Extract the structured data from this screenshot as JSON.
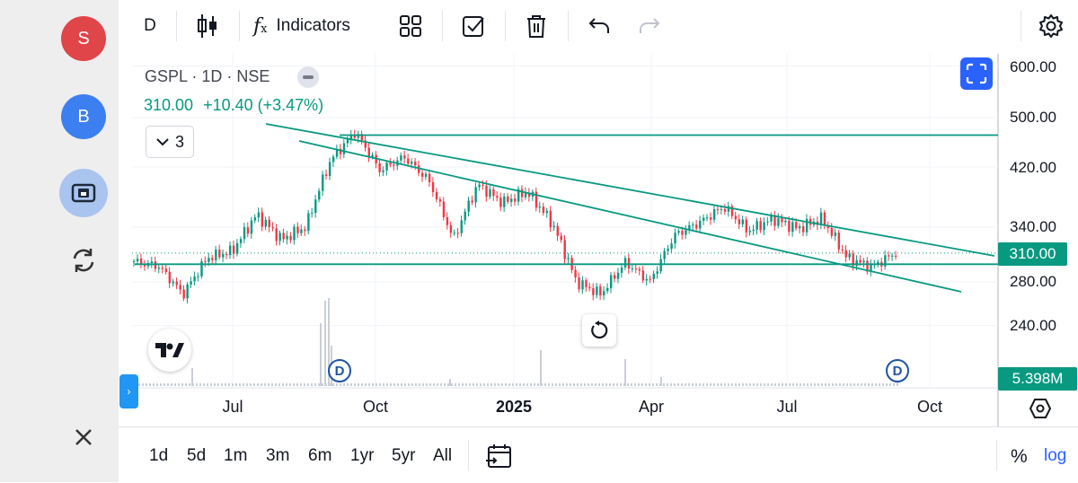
{
  "sidebar": {
    "avatars": [
      {
        "letter": "S",
        "color": "#e0454a"
      },
      {
        "letter": "B",
        "color": "#3c7ff0"
      }
    ]
  },
  "toolbar": {
    "interval": "D",
    "indicators_label": "Indicators"
  },
  "legend": {
    "symbol": "GSPL · 1D · NSE",
    "price": "310.00",
    "change": "+10.40 (+3.47%)",
    "indicator_count": "3"
  },
  "price_axis": {
    "labels": [
      "600.00",
      "500.00",
      "420.00",
      "340.00",
      "280.00",
      "240.00"
    ],
    "current_price": "310.00",
    "volume": "5.398M"
  },
  "time_axis": {
    "labels": [
      "Jul",
      "Oct",
      "2025",
      "Apr",
      "Jul",
      "Oct"
    ]
  },
  "dividend_marker": "D",
  "ranges": [
    "1d",
    "5d",
    "1m",
    "3m",
    "6m",
    "1yr",
    "5yr",
    "All"
  ],
  "scale_options": {
    "percent": "%",
    "log": "log"
  },
  "colors": {
    "up": "#089981",
    "down": "#f23645",
    "accent": "#2962ff",
    "line": "#089981"
  },
  "chart_data": {
    "type": "candlestick",
    "symbol": "GSPL",
    "interval": "1D",
    "exchange": "NSE",
    "y_scale": "log",
    "ylim": [
      220,
      620
    ],
    "y_ticks": [
      600,
      500,
      420,
      340,
      280,
      240
    ],
    "x_ticks": [
      "Jul",
      "Oct",
      "2025",
      "Apr",
      "Jul",
      "Oct"
    ],
    "close_path": [
      {
        "t": "May 2024",
        "v": 301
      },
      {
        "t": "early Jun 2024",
        "v": 296
      },
      {
        "t": "Jun 2024 low",
        "v": 268
      },
      {
        "t": "late Jun 2024",
        "v": 305
      },
      {
        "t": "Jul 2024",
        "v": 312
      },
      {
        "t": "late Jul 2024",
        "v": 355
      },
      {
        "t": "early Aug 2024",
        "v": 325
      },
      {
        "t": "mid Aug 2024",
        "v": 340
      },
      {
        "t": "late Aug 2024",
        "v": 430
      },
      {
        "t": "early Sep 2024",
        "v": 475
      },
      {
        "t": "mid Sep 2024",
        "v": 415
      },
      {
        "t": "Oct 2024",
        "v": 435
      },
      {
        "t": "early Nov 2024",
        "v": 400
      },
      {
        "t": "late Nov 2024",
        "v": 325
      },
      {
        "t": "Dec 2024",
        "v": 395
      },
      {
        "t": "Jan 2025",
        "v": 370
      },
      {
        "t": "mid Jan 2025",
        "v": 385
      },
      {
        "t": "Feb 2025",
        "v": 345
      },
      {
        "t": "early Mar 2025",
        "v": 280
      },
      {
        "t": "mid Mar 2025",
        "v": 268
      },
      {
        "t": "late Mar 2025",
        "v": 300
      },
      {
        "t": "early Apr 2025",
        "v": 280
      },
      {
        "t": "mid Apr 2025",
        "v": 330
      },
      {
        "t": "May 2025",
        "v": 345
      },
      {
        "t": "mid May 2025",
        "v": 365
      },
      {
        "t": "Jun 2025",
        "v": 335
      },
      {
        "t": "late Jun 2025",
        "v": 350
      },
      {
        "t": "Jul 2025",
        "v": 338
      },
      {
        "t": "late Jul 2025",
        "v": 350
      },
      {
        "t": "Aug 2025",
        "v": 305
      },
      {
        "t": "early Sep 2025",
        "v": 295
      },
      {
        "t": "Sep 2025",
        "v": 310
      }
    ],
    "trend_lines": [
      {
        "kind": "horizontal",
        "level": 470
      },
      {
        "kind": "horizontal",
        "level": 298
      },
      {
        "kind": "descending",
        "from": {
          "t": "Aug 2024",
          "v": 495
        },
        "to": {
          "t": "Oct 2025",
          "v": 310
        }
      },
      {
        "kind": "descending",
        "from": {
          "t": "Aug 2024",
          "v": 480
        },
        "to": {
          "t": "Oct 2025",
          "v": 272
        }
      }
    ]
  }
}
